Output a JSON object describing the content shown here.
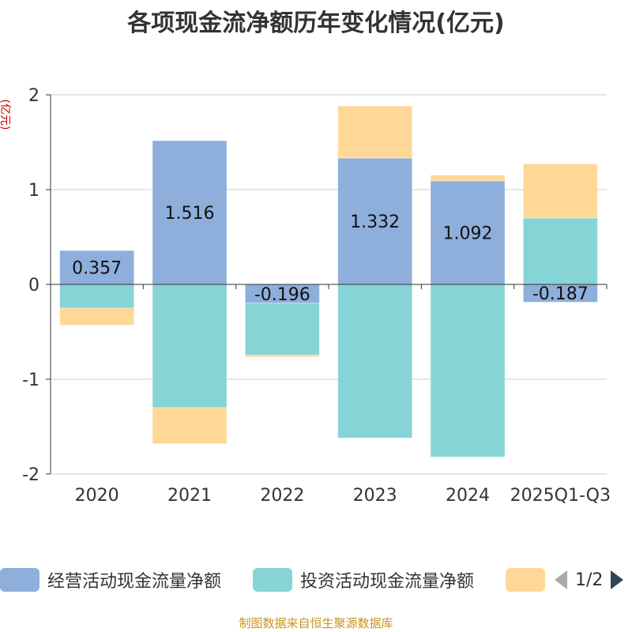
{
  "title": "各项现金流净额历年变化情况(亿元)",
  "source": "制图数据来自恒生聚源数据库",
  "legend": {
    "items": [
      {
        "label": "经营活动现金流量净额",
        "color": "#8eaedb"
      },
      {
        "label": "投资活动现金流量净额",
        "color": "#86d4d6"
      },
      {
        "label": "",
        "color": "#ffd897"
      }
    ],
    "page": "1/2"
  },
  "chart_data": {
    "type": "bar",
    "stacked": true,
    "title": "各项现金流净额历年变化情况(亿元)",
    "ylabel": "(亿元)",
    "xlabel": "",
    "ylim": [
      -2,
      2
    ],
    "yticks": [
      2,
      1,
      0,
      -1,
      -2
    ],
    "categories": [
      "2020",
      "2021",
      "2022",
      "2023",
      "2024",
      "2025Q1-Q3"
    ],
    "series": [
      {
        "name": "经营活动现金流量净额",
        "color": "#8eaedb",
        "values": [
          0.357,
          1.516,
          -0.196,
          1.332,
          1.092,
          -0.187
        ],
        "labels": [
          "0.357",
          "1.516",
          "-0.196",
          "1.332",
          "1.092",
          "-0.187"
        ]
      },
      {
        "name": "投资活动现金流量净额",
        "color": "#86d4d6",
        "values": [
          -0.25,
          -1.3,
          -0.55,
          -1.62,
          -1.82,
          0.7
        ]
      },
      {
        "name": "",
        "color": "#ffd897",
        "values": [
          -0.18,
          -0.38,
          -0.02,
          0.55,
          0.06,
          0.57
        ]
      }
    ]
  }
}
